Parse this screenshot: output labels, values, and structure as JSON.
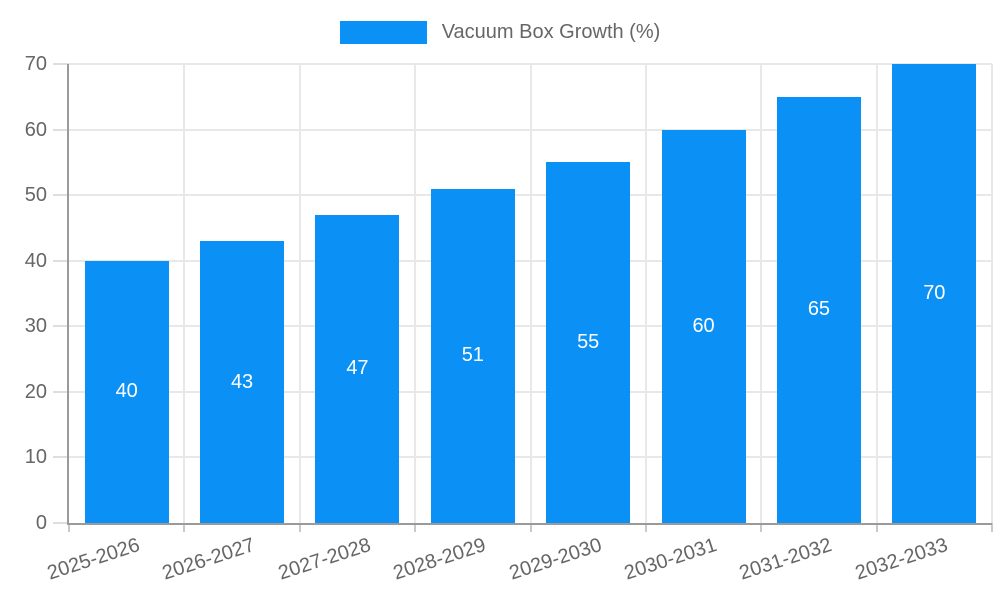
{
  "legend": {
    "label": "Vacuum Box Growth (%)",
    "swatch_color": "#0b90f5"
  },
  "chart_data": {
    "type": "bar",
    "title": "",
    "series_name": "Vacuum Box Growth (%)",
    "categories": [
      "2025-2026",
      "2026-2027",
      "2027-2028",
      "2028-2029",
      "2029-2030",
      "2030-2031",
      "2031-2032",
      "2032-2033"
    ],
    "values": [
      40,
      43,
      47,
      51,
      55,
      60,
      65,
      70
    ],
    "bar_labels": [
      "40",
      "43",
      "47",
      "51",
      "55",
      "60",
      "65",
      "70"
    ],
    "xlabel": "",
    "ylabel": "",
    "ylim": [
      0,
      70
    ],
    "yticks": [
      0,
      10,
      20,
      30,
      40,
      50,
      60,
      70
    ],
    "grid": true,
    "legend_position": "top-center",
    "x_tick_rotation_deg": -18,
    "colors": {
      "bar": "#0b90f5",
      "bar_label": "#ffffff",
      "grid": "#e8e8e8",
      "axis": "#9a9a9a",
      "tick_text": "#666666",
      "legend_text": "#666666",
      "background": "#ffffff"
    }
  }
}
